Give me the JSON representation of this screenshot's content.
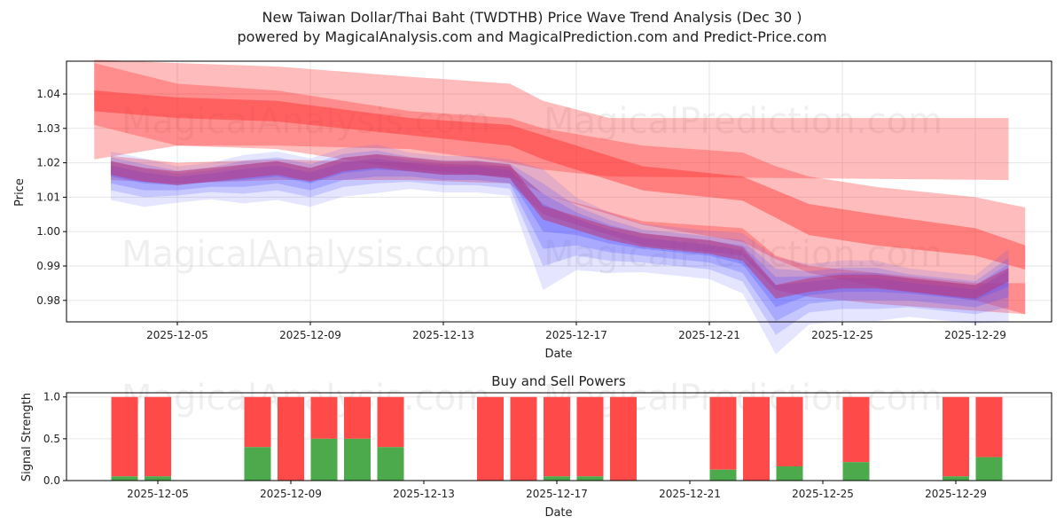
{
  "chart_data": [
    {
      "type": "area",
      "title": "New Taiwan Dollar/Thai Baht (TWDTHB) Price Wave Trend Analysis (Dec 30 )",
      "subtitle": "powered by MagicalAnalysis.com and MagicalPrediction.com and Predict-Price.com",
      "xlabel": "Date",
      "ylabel": "Price",
      "xlim_days": [
        2,
        31
      ],
      "ylim": [
        0.974,
        1.049
      ],
      "grid": true,
      "x_ticks": [
        {
          "day": 5,
          "label": "2025-12-05"
        },
        {
          "day": 9,
          "label": "2025-12-09"
        },
        {
          "day": 13,
          "label": "2025-12-13"
        },
        {
          "day": 17,
          "label": "2025-12-17"
        },
        {
          "day": 21,
          "label": "2025-12-21"
        },
        {
          "day": 25,
          "label": "2025-12-25"
        },
        {
          "day": 29,
          "label": "2025-12-29"
        }
      ],
      "y_ticks": [
        "0.98",
        "0.99",
        "1.00",
        "1.01",
        "1.02",
        "1.03",
        "1.04"
      ],
      "red_bands": [
        {
          "name": "upper-flat-band",
          "x": [
            2.5,
            5,
            8,
            12,
            15,
            16,
            18,
            30
          ],
          "upper": [
            1.05,
            1.049,
            1.048,
            1.045,
            1.043,
            1.038,
            1.033,
            1.033
          ],
          "lower": [
            1.021,
            1.025,
            1.025,
            1.024,
            1.02,
            1.018,
            1.016,
            1.015
          ],
          "opacity": 0.3
        },
        {
          "name": "wide-trend-band",
          "x": [
            2.5,
            5,
            8,
            12,
            15,
            16,
            19,
            22,
            23,
            24,
            26,
            29,
            30.5
          ],
          "upper": [
            1.049,
            1.043,
            1.041,
            1.035,
            1.033,
            1.03,
            1.025,
            1.023,
            1.019,
            1.016,
            1.013,
            1.01,
            1.007
          ],
          "lower": [
            1.031,
            1.025,
            1.024,
            1.018,
            1.016,
            1.011,
            1.002,
            0.997,
            0.992,
            0.988,
            0.984,
            0.98,
            0.976
          ],
          "opacity": 0.3
        },
        {
          "name": "core-trend-band",
          "x": [
            2.5,
            5,
            8,
            12,
            15,
            16,
            19,
            22,
            23,
            24,
            26,
            29,
            30.5
          ],
          "upper": [
            1.041,
            1.039,
            1.038,
            1.033,
            1.031,
            1.028,
            1.019,
            1.016,
            1.012,
            1.008,
            1.005,
            1.001,
            0.996
          ],
          "lower": [
            1.035,
            1.033,
            1.032,
            1.028,
            1.025,
            1.021,
            1.012,
            1.009,
            1.004,
            0.999,
            0.996,
            0.993,
            0.989
          ],
          "opacity": 0.4
        },
        {
          "name": "low-trend-band",
          "x": [
            3,
            5,
            8,
            12,
            15,
            16,
            19,
            22,
            23,
            24,
            26,
            29,
            30.5
          ],
          "upper": [
            1.022,
            1.02,
            1.021,
            1.02,
            1.019,
            1.011,
            1.003,
            1.001,
            0.993,
            0.99,
            0.988,
            0.985,
            0.985
          ],
          "lower": [
            1.015,
            1.014,
            1.015,
            1.015,
            1.014,
            1.005,
            0.996,
            0.993,
            0.983,
            0.981,
            0.979,
            0.977,
            0.976
          ],
          "opacity": 0.3
        }
      ],
      "blue_series": {
        "x": [
          3,
          4,
          5,
          6,
          7,
          8,
          9,
          10,
          11,
          12,
          13,
          14,
          15,
          16,
          17,
          18,
          19,
          20,
          21,
          22,
          23,
          24,
          25,
          26,
          27,
          28,
          29,
          30
        ],
        "values": [
          1.018,
          1.016,
          1.015,
          1.016,
          1.017,
          1.018,
          1.016,
          1.019,
          1.02,
          1.019,
          1.018,
          1.018,
          1.017,
          1.005,
          1.002,
          0.999,
          0.997,
          0.996,
          0.995,
          0.993,
          0.982,
          0.984,
          0.985,
          0.985,
          0.984,
          0.983,
          0.982,
          0.987
        ],
        "spread": [
          0.004,
          0.004,
          0.003,
          0.003,
          0.004,
          0.004,
          0.004,
          0.004,
          0.004,
          0.003,
          0.003,
          0.003,
          0.003,
          0.01,
          0.006,
          0.005,
          0.004,
          0.004,
          0.004,
          0.005,
          0.008,
          0.005,
          0.005,
          0.005,
          0.004,
          0.004,
          0.004,
          0.006
        ]
      },
      "watermarks": [
        "MagicalAnalysis.com",
        "MagicalPrediction.com"
      ]
    },
    {
      "type": "bar",
      "title": "Buy and Sell Powers",
      "xlabel": "Date",
      "ylabel": "Signal Strength",
      "ylim": [
        0,
        1.05
      ],
      "y_ticks": [
        "0.0",
        "0.5",
        "1.0"
      ],
      "x_ticks": [
        {
          "day": 5,
          "label": "2025-12-05"
        },
        {
          "day": 9,
          "label": "2025-12-09"
        },
        {
          "day": 13,
          "label": "2025-12-13"
        },
        {
          "day": 17,
          "label": "2025-12-17"
        },
        {
          "day": 21,
          "label": "2025-12-21"
        },
        {
          "day": 25,
          "label": "2025-12-25"
        },
        {
          "day": 29,
          "label": "2025-12-29"
        }
      ],
      "days": [
        4,
        5,
        8,
        9,
        10,
        11,
        12,
        15,
        16,
        17,
        18,
        19,
        22,
        23,
        24,
        26,
        29,
        30
      ],
      "buy": [
        0.05,
        0.05,
        0.4,
        0.0,
        0.5,
        0.5,
        0.4,
        0.0,
        0.0,
        0.05,
        0.05,
        0.0,
        0.13,
        0.0,
        0.17,
        0.22,
        0.05,
        0.28
      ],
      "sell_total": 1.0,
      "colors": {
        "buy": "#4caa4c",
        "sell": "#ff4a4a"
      }
    }
  ]
}
